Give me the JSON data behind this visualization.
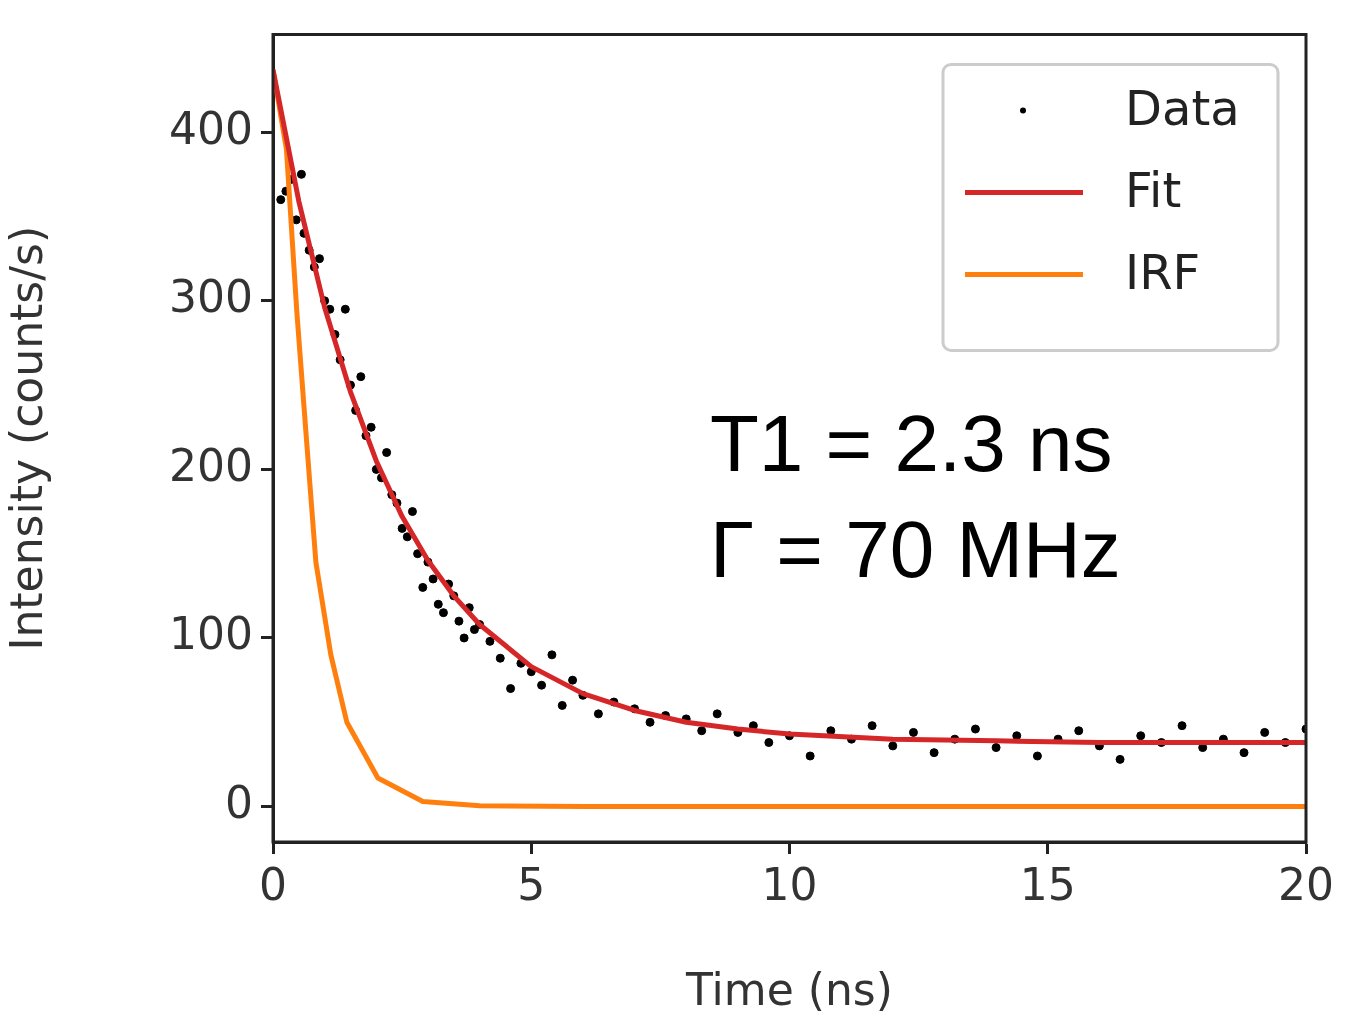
{
  "chart_data": {
    "type": "line",
    "xlabel": "Time (ns)",
    "ylabel": "Intensity (counts/s)",
    "xlim": [
      0,
      20
    ],
    "xticks": [
      0,
      5,
      10,
      15,
      20
    ],
    "ylim": [
      -21,
      458
    ],
    "yticks": [
      0,
      100,
      200,
      300,
      400
    ],
    "grid": false,
    "legend": "top right",
    "annotations": [
      "T1 = 2.3 ns",
      "Γ = 70 MHz"
    ],
    "series": [
      {
        "name": "Data",
        "type": "scatter",
        "marker": "circle",
        "color": "#000000",
        "x": [
          0.15,
          0.25,
          0.35,
          0.45,
          0.55,
          0.6,
          0.7,
          0.8,
          0.9,
          1.0,
          1.1,
          1.2,
          1.3,
          1.4,
          1.5,
          1.6,
          1.7,
          1.8,
          1.9,
          2.0,
          2.1,
          2.2,
          2.3,
          2.4,
          2.5,
          2.6,
          2.7,
          2.8,
          2.9,
          3.0,
          3.1,
          3.2,
          3.3,
          3.4,
          3.5,
          3.6,
          3.7,
          3.8,
          3.9,
          4.0,
          4.2,
          4.4,
          4.6,
          4.8,
          5.0,
          5.2,
          5.4,
          5.6,
          5.8,
          6.0,
          6.3,
          6.6,
          7.0,
          7.3,
          7.6,
          8.0,
          8.3,
          8.6,
          9.0,
          9.3,
          9.6,
          10.0,
          10.4,
          10.8,
          11.2,
          11.6,
          12.0,
          12.4,
          12.8,
          13.2,
          13.6,
          14.0,
          14.4,
          14.8,
          15.2,
          15.6,
          16.0,
          16.4,
          16.8,
          17.2,
          17.6,
          18.0,
          18.4,
          18.8,
          19.2,
          19.6,
          20.0
        ],
        "values": [
          360,
          365,
          372,
          348,
          375,
          340,
          330,
          320,
          325,
          300,
          295,
          280,
          265,
          295,
          250,
          235,
          255,
          220,
          225,
          200,
          195,
          210,
          185,
          180,
          165,
          160,
          175,
          150,
          130,
          145,
          135,
          120,
          115,
          132,
          125,
          110,
          100,
          118,
          105,
          108,
          98,
          88,
          70,
          85,
          80,
          72,
          90,
          60,
          75,
          66,
          55,
          62,
          58,
          50,
          54,
          52,
          45,
          55,
          44,
          48,
          38,
          42,
          30,
          45,
          40,
          48,
          36,
          44,
          32,
          40,
          46,
          35,
          42,
          30,
          40,
          45,
          36,
          28,
          42,
          38,
          48,
          35,
          40,
          32,
          44,
          38,
          46
        ]
      },
      {
        "name": "Fit",
        "type": "line",
        "marker": "none",
        "color": "#d62728",
        "x": [
          0,
          0.5,
          1,
          1.5,
          2,
          2.5,
          3,
          3.5,
          4,
          5,
          6,
          7,
          8,
          9,
          10,
          12,
          14,
          16,
          18,
          20
        ],
        "values": [
          437,
          359,
          296,
          246,
          205,
          172,
          146,
          125,
          108,
          83,
          67,
          57,
          50,
          46,
          43,
          40,
          39,
          38,
          38,
          38
        ]
      },
      {
        "name": "IRF",
        "type": "line",
        "marker": "none",
        "color": "#ff7f0e",
        "x": [
          0,
          0.26,
          0.46,
          0.65,
          0.83,
          1.12,
          1.43,
          2.03,
          2.9,
          4,
          6,
          10,
          15,
          20
        ],
        "values": [
          437,
          390,
          294,
          217,
          145,
          90,
          50,
          17,
          3,
          0.5,
          0,
          0,
          0,
          0
        ]
      }
    ]
  }
}
